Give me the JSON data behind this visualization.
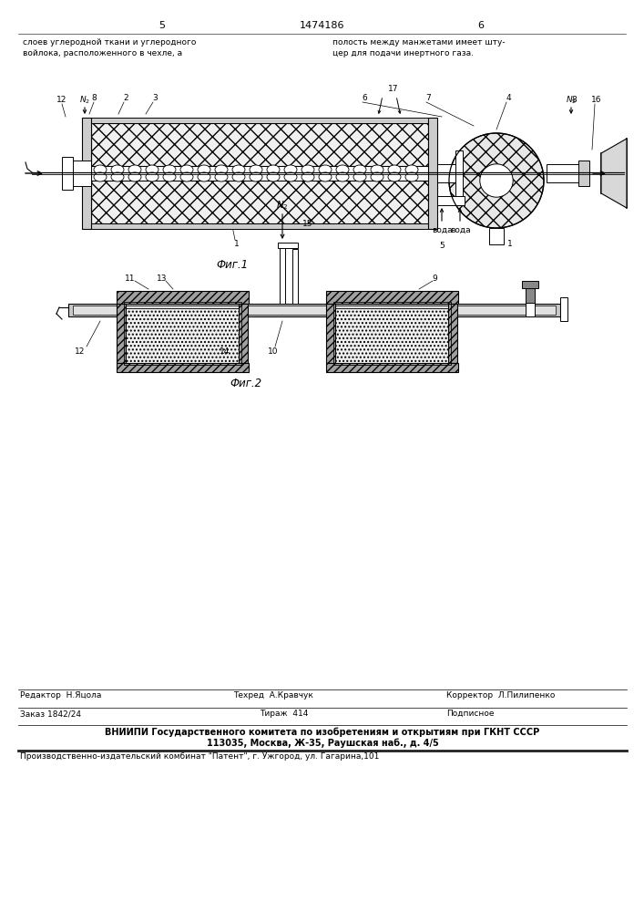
{
  "page_num_left": "5",
  "page_num_right": "6",
  "patent_num": "1474186",
  "header_left": "слоев углеродной ткани и углеродного\nвойлока, расположенного в чехле, а",
  "header_right": "полость между манжетами имеет шту-\nцер для подачи инертного газа.",
  "fig1_caption": "Фиг.1",
  "fig2_caption": "Фиг.2",
  "footer_editor": "Редактор  Н.Яцола",
  "footer_tehred": "Техред  А.Кравчук",
  "footer_corrector": "Корректор  Л.Пилипенко",
  "footer_order": "Заказ 1842/24",
  "footer_tirage": "Тираж  414",
  "footer_podpisnoe": "Подписное",
  "footer_vniiipi": "ВНИИПИ Государственного комитета по изобретениям и открытиям при ГКНТ СССР\n113035, Москва, Ж-35, Раушская наб., д. 4/5",
  "footer_factory": "Производственно-издательский комбинат \"Патент\", г. Ужгород, ул. Гагарина,101",
  "bg_color": "#ffffff",
  "line_color": "#000000"
}
